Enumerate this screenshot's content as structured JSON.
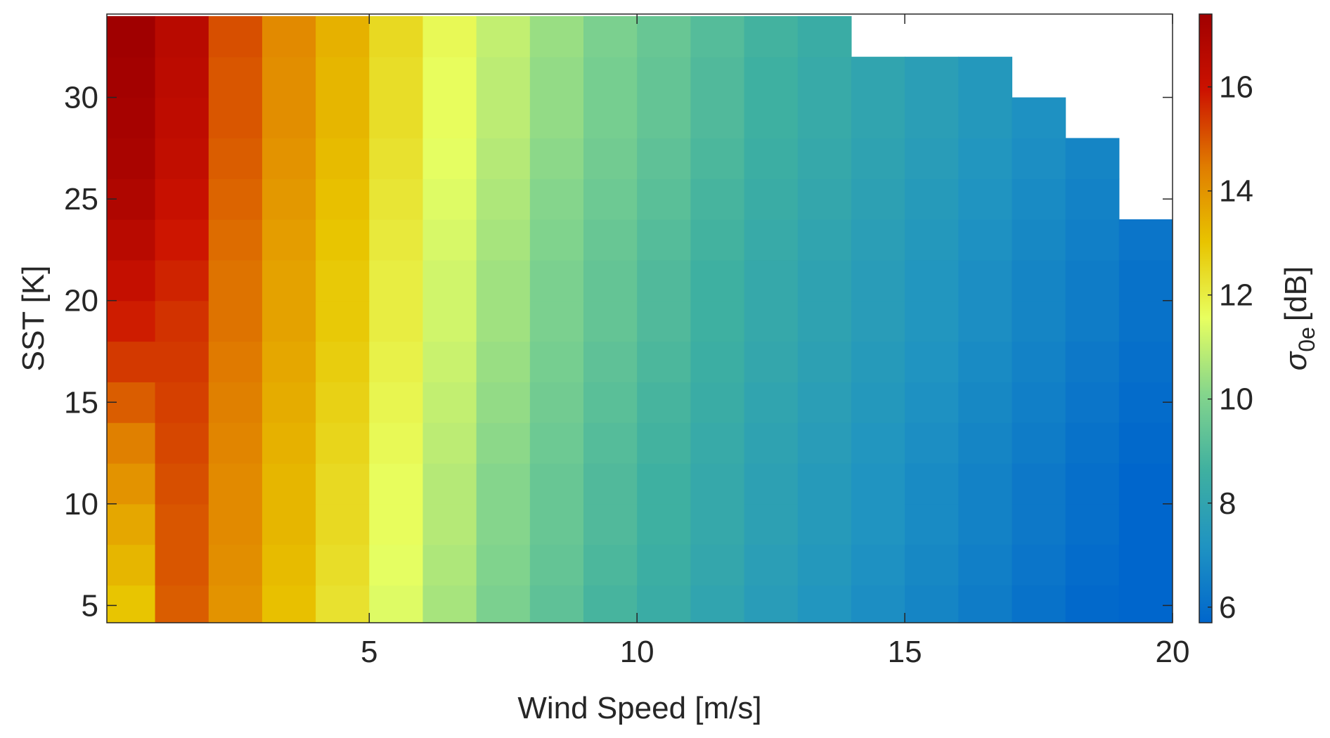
{
  "chart_data": {
    "type": "heatmap",
    "x_label": "Wind Speed [m/s]",
    "y_label": "SST [K]",
    "colorbar_label": {
      "symbol": "σ",
      "subscript": "0e",
      "unit": "[dB]"
    },
    "x": [
      0.5,
      1.5,
      2.5,
      3.5,
      4.5,
      5.5,
      6.5,
      7.5,
      8.5,
      9.5,
      10.5,
      11.5,
      12.5,
      13.5,
      14.5,
      15.5,
      16.5,
      17.5,
      18.5,
      19.5
    ],
    "y": [
      5,
      7,
      9,
      11,
      13,
      15,
      17,
      19,
      21,
      23,
      25,
      27,
      29,
      31,
      33
    ],
    "z": [
      [
        13.0,
        14.9,
        14.0,
        13.1,
        12.3,
        11.4,
        10.6,
        9.9,
        9.3,
        8.8,
        8.4,
        8.0,
        7.6,
        7.3,
        7.0,
        6.7,
        6.4,
        6.1,
        5.8,
        5.5
      ],
      [
        13.3,
        15.0,
        14.1,
        13.2,
        12.4,
        11.5,
        10.7,
        10.0,
        9.4,
        8.9,
        8.5,
        8.1,
        7.7,
        7.4,
        7.1,
        6.8,
        6.5,
        6.2,
        5.9,
        5.6
      ],
      [
        13.6,
        15.0,
        14.2,
        13.3,
        12.5,
        11.6,
        10.8,
        10.1,
        9.5,
        9.0,
        8.6,
        8.2,
        7.8,
        7.5,
        7.2,
        6.9,
        6.6,
        6.3,
        6.0,
        5.7
      ],
      [
        14.0,
        15.1,
        14.2,
        13.3,
        12.5,
        11.6,
        10.8,
        10.1,
        9.5,
        9.0,
        8.6,
        8.2,
        7.8,
        7.5,
        7.2,
        6.9,
        6.6,
        6.3,
        6.0,
        5.7
      ],
      [
        14.4,
        15.2,
        14.3,
        13.4,
        12.6,
        11.7,
        10.9,
        10.2,
        9.6,
        9.1,
        8.7,
        8.3,
        7.9,
        7.6,
        7.3,
        7.0,
        6.7,
        6.4,
        6.1,
        5.8
      ],
      [
        14.9,
        15.3,
        14.4,
        13.5,
        12.7,
        11.8,
        11.0,
        10.3,
        9.7,
        9.2,
        8.8,
        8.4,
        8.0,
        7.7,
        7.4,
        7.1,
        6.8,
        6.5,
        6.2,
        5.9
      ],
      [
        15.4,
        15.4,
        14.5,
        13.6,
        12.8,
        11.9,
        11.1,
        10.4,
        9.8,
        9.3,
        8.9,
        8.5,
        8.1,
        7.8,
        7.5,
        7.2,
        6.9,
        6.6,
        6.3,
        6.0
      ],
      [
        15.8,
        15.5,
        14.6,
        13.7,
        12.9,
        12.0,
        11.2,
        10.5,
        9.9,
        9.4,
        9.0,
        8.6,
        8.2,
        7.9,
        7.6,
        7.3,
        7.0,
        6.7,
        6.4,
        6.1
      ],
      [
        16.2,
        15.7,
        14.6,
        13.7,
        12.9,
        12.0,
        11.2,
        10.5,
        9.9,
        9.4,
        9.0,
        8.6,
        8.2,
        7.9,
        7.6,
        7.3,
        7.0,
        6.7,
        6.4,
        6.1
      ],
      [
        16.6,
        15.9,
        14.7,
        13.8,
        13.0,
        12.1,
        11.3,
        10.6,
        10.0,
        9.5,
        9.1,
        8.7,
        8.3,
        8.0,
        7.7,
        7.4,
        7.1,
        6.8,
        6.5,
        6.2
      ],
      [
        16.9,
        16.1,
        14.8,
        13.9,
        13.1,
        12.2,
        11.4,
        10.7,
        10.1,
        9.6,
        9.2,
        8.8,
        8.4,
        8.1,
        7.8,
        7.5,
        7.2,
        6.9,
        6.6,
        null
      ],
      [
        17.1,
        16.3,
        14.9,
        14.0,
        13.2,
        12.3,
        11.5,
        10.8,
        10.2,
        9.7,
        9.3,
        8.9,
        8.5,
        8.2,
        7.9,
        7.6,
        7.3,
        7.0,
        6.7,
        null
      ],
      [
        17.2,
        16.4,
        15.0,
        14.1,
        13.3,
        12.4,
        11.6,
        10.9,
        10.3,
        9.8,
        9.4,
        9.0,
        8.6,
        8.3,
        8.0,
        7.7,
        7.4,
        7.1,
        null,
        null
      ],
      [
        17.3,
        16.5,
        15.0,
        14.1,
        13.3,
        12.4,
        11.6,
        10.9,
        10.3,
        9.8,
        9.4,
        9.0,
        8.6,
        8.3,
        8.0,
        7.7,
        7.4,
        null,
        null,
        null
      ],
      [
        17.4,
        16.6,
        15.1,
        14.2,
        13.4,
        12.5,
        11.7,
        11.0,
        10.4,
        9.9,
        9.5,
        9.1,
        8.7,
        8.4,
        null,
        null,
        null,
        null,
        null,
        null
      ]
    ],
    "xlim": [
      0.1,
      20
    ],
    "ylim": [
      4.15,
      34.1
    ],
    "xticks": [
      5,
      10,
      15,
      20
    ],
    "yticks": [
      5,
      10,
      15,
      20,
      25,
      30
    ],
    "clim": [
      5.7,
      17.4
    ],
    "cticks": [
      6,
      8,
      10,
      12,
      14,
      16
    ],
    "colormap": [
      "#0066cc",
      "#1f93c2",
      "#3fb0a0",
      "#84d58c",
      "#e8ff60",
      "#e8c400",
      "#e07c00",
      "#cc1200",
      "#a00000"
    ]
  }
}
